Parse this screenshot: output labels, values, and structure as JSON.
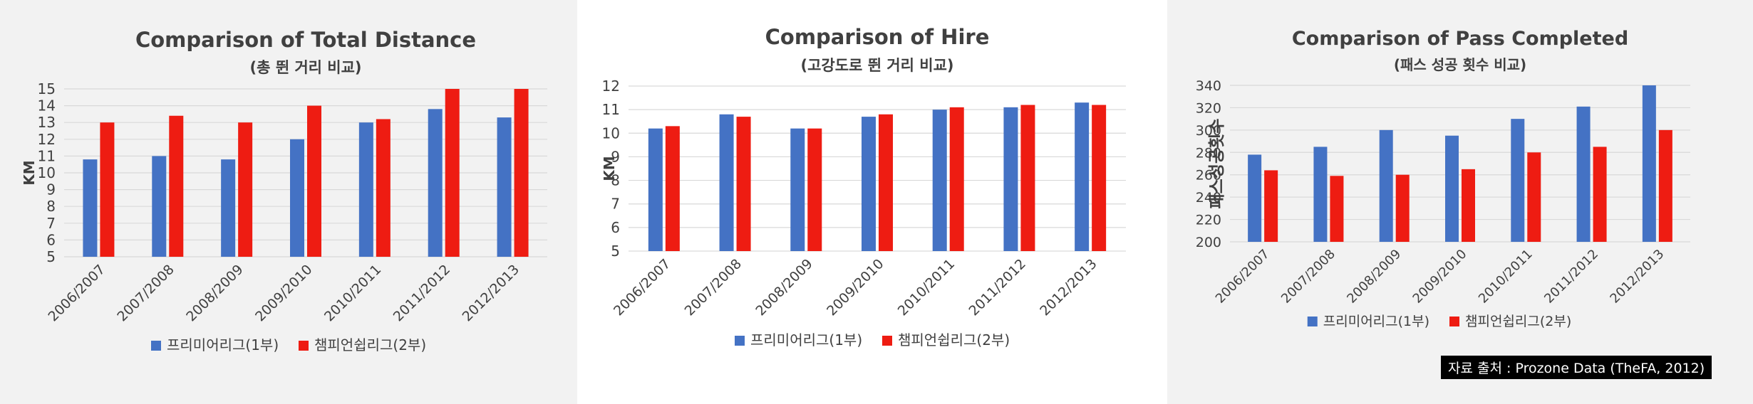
{
  "colors": {
    "premier": "#4472c4",
    "championship": "#ee1c12",
    "grid": "#d9d9d9"
  },
  "source": "자료 출처 : Prozone Data (TheFA, 2012)",
  "chart_data": [
    {
      "type": "bar",
      "title": "Comparison of Total Distance",
      "subtitle": "(총 뛴 거리 비교)",
      "ylabel": "KM",
      "xlabel": "",
      "ylim": [
        5,
        15
      ],
      "yticks": [
        5,
        6,
        7,
        8,
        9,
        10,
        11,
        12,
        13,
        14,
        15
      ],
      "grid": true,
      "legend": "bottom",
      "categories": [
        "2006/2007",
        "2007/2008",
        "2008/2009",
        "2009/2010",
        "2010/2011",
        "2011/2012",
        "2012/2013"
      ],
      "series": [
        {
          "name": "프리미어리그(1부)",
          "values": [
            10.8,
            11.0,
            10.8,
            12.0,
            13.0,
            13.8,
            13.3
          ]
        },
        {
          "name": "챔피언쉽리그(2부)",
          "values": [
            13.0,
            13.4,
            13.0,
            14.0,
            13.2,
            15.0,
            15.0
          ]
        }
      ]
    },
    {
      "type": "bar",
      "title": "Comparison of Hire",
      "subtitle": "(고강도로 뛴 거리 비교)",
      "ylabel": "KM",
      "xlabel": "",
      "ylim": [
        5,
        12
      ],
      "yticks": [
        5,
        6,
        7,
        8,
        9,
        10,
        11,
        12
      ],
      "grid": true,
      "legend": "bottom",
      "categories": [
        "2006/2007",
        "2007/2008",
        "2008/2009",
        "2009/2010",
        "2010/2011",
        "2011/2012",
        "2012/2013"
      ],
      "series": [
        {
          "name": "프리미어리그(1부)",
          "values": [
            10.2,
            10.8,
            10.2,
            10.7,
            11.0,
            11.1,
            11.3
          ]
        },
        {
          "name": "챔피언쉽리그(2부)",
          "values": [
            10.3,
            10.7,
            10.2,
            10.8,
            11.1,
            11.2,
            11.2
          ]
        }
      ]
    },
    {
      "type": "bar",
      "title": "Comparison of Pass Completed",
      "subtitle": "(패스 성공 횟수 비교)",
      "ylabel": "패스성공횟수",
      "xlabel": "",
      "ylim": [
        200,
        340
      ],
      "yticks": [
        200,
        220,
        240,
        260,
        280,
        300,
        320,
        340
      ],
      "grid": true,
      "legend": "bottom",
      "categories": [
        "2006/2007",
        "2007/2008",
        "2008/2009",
        "2009/2010",
        "2010/2011",
        "2011/2012",
        "2012/2013"
      ],
      "series": [
        {
          "name": "프리미어리그(1부)",
          "values": [
            278,
            285,
            300,
            295,
            310,
            321,
            340
          ]
        },
        {
          "name": "챔피언쉽리그(2부)",
          "values": [
            264,
            259,
            260,
            265,
            280,
            285,
            300
          ]
        }
      ]
    }
  ]
}
